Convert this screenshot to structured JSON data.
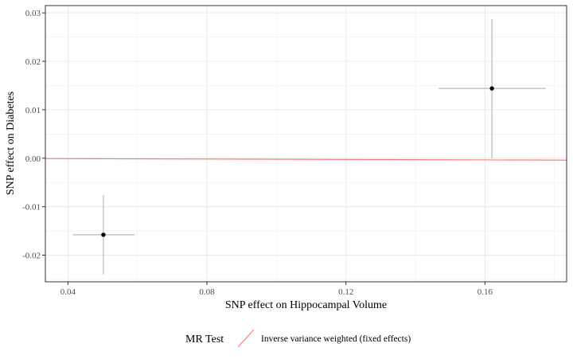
{
  "chart_data": {
    "type": "scatter",
    "title": "",
    "xlabel": "SNP effect on Hippocampal Volume",
    "ylabel": "SNP effect on Diabetes",
    "xlim": [
      0.0335,
      0.1835
    ],
    "ylim": [
      -0.0255,
      0.0315
    ],
    "x_ticks": [
      0.04,
      0.08,
      0.12,
      0.16
    ],
    "x_tick_labels": [
      "0.04",
      "0.08",
      "0.12",
      "0.16"
    ],
    "y_ticks": [
      -0.02,
      -0.01,
      0.0,
      0.01,
      0.02,
      0.03
    ],
    "y_tick_labels": [
      "-0.02",
      "-0.01",
      "0.00",
      "0.01",
      "0.02",
      "0.03"
    ],
    "grid": true,
    "points": [
      {
        "x": 0.0502,
        "y": -0.0158,
        "x_low": 0.0414,
        "x_high": 0.0592,
        "y_low": -0.024,
        "y_high": -0.0076
      },
      {
        "x": 0.162,
        "y": 0.0144,
        "x_low": 0.1467,
        "x_high": 0.1775,
        "y_low": 0.0,
        "y_high": 0.0287
      }
    ],
    "lines": [
      {
        "name": "Inverse variance weighted (fixed effects)",
        "intercept": 0,
        "slope": -0.0022,
        "color": "#f8766d"
      }
    ],
    "legend": {
      "title": "MR Test",
      "position": "bottom",
      "entries": [
        "Inverse variance weighted (fixed effects)"
      ]
    },
    "colors": {
      "point": "#000000",
      "errorbar": "#b3b3b3",
      "grid": "#ebebeb",
      "panel_border": "#333333"
    }
  }
}
